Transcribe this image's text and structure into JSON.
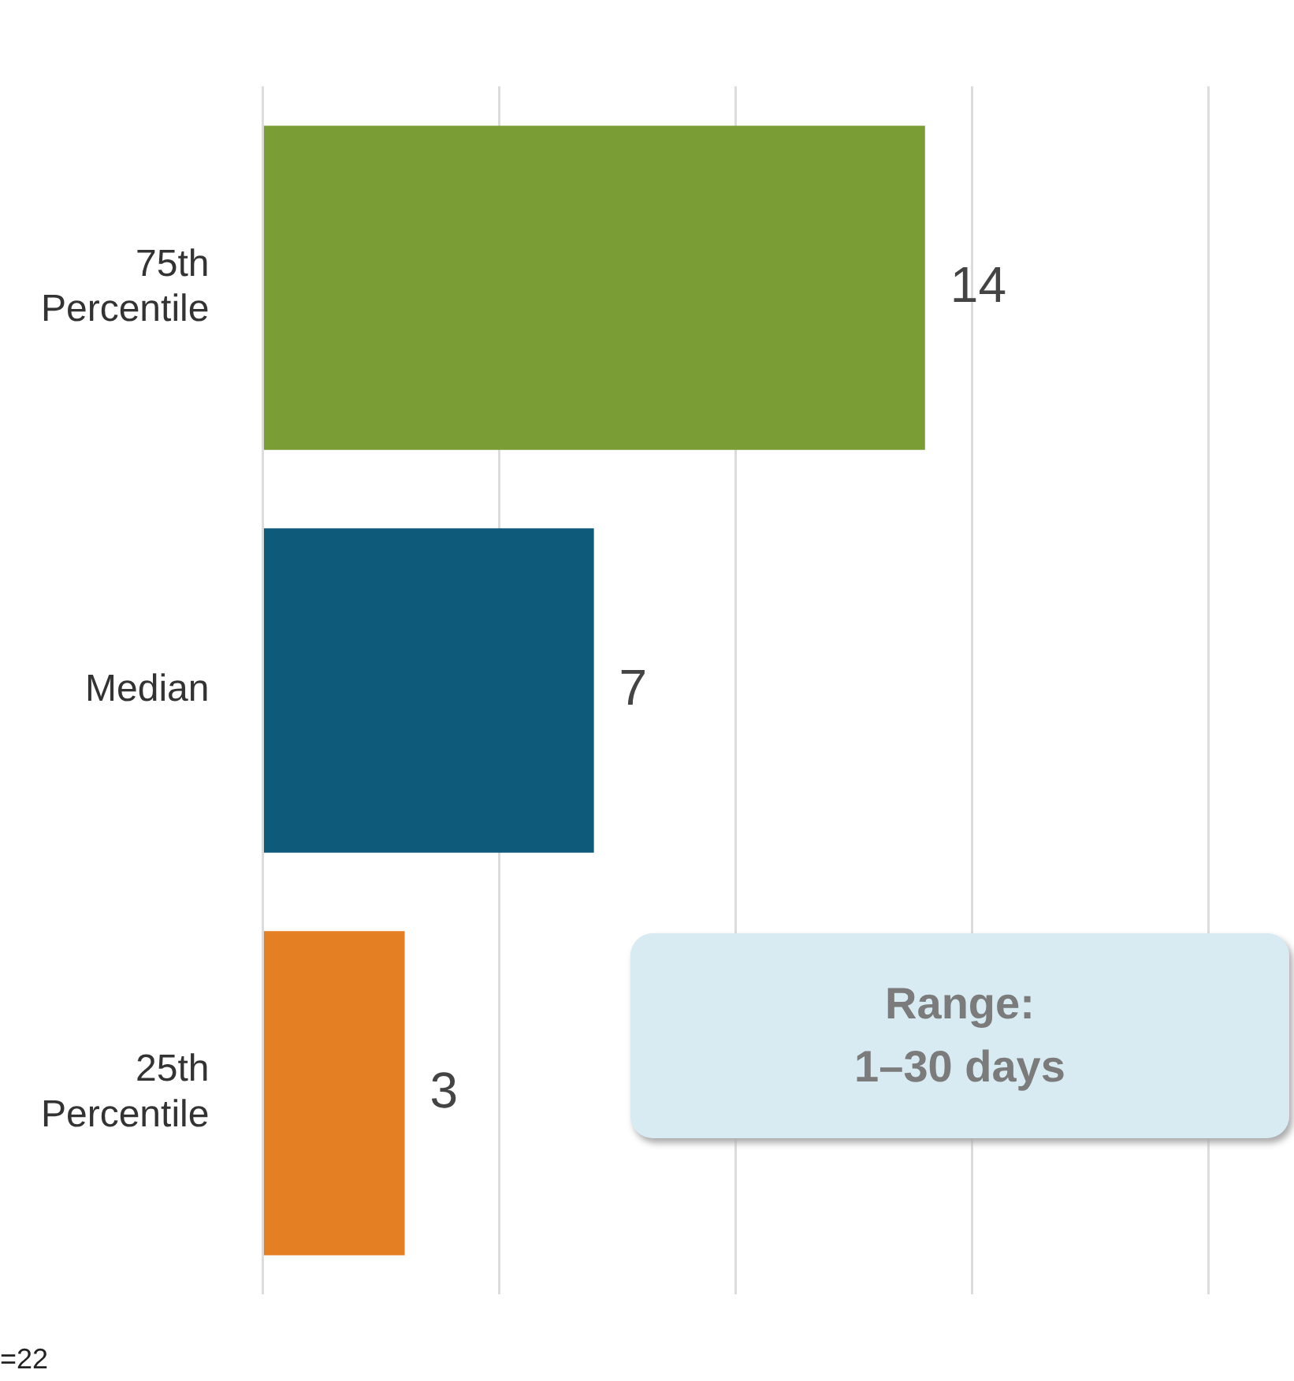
{
  "chart_data": {
    "type": "bar",
    "orientation": "horizontal",
    "categories": [
      "75th Percentile",
      "Median",
      "25th Percentile"
    ],
    "values": [
      14,
      7,
      3
    ],
    "colors": [
      "#7a9e35",
      "#0e5a7a",
      "#e57f24"
    ],
    "data_labels": true,
    "xlim": [
      0,
      21.8
    ],
    "xticks": [
      {
        "value": 0,
        "label": null
      },
      {
        "value": 5,
        "label": null
      },
      {
        "value": 10,
        "label": null
      },
      {
        "value": 15,
        "label": null
      },
      {
        "value": 20,
        "label": null
      }
    ],
    "tick_labels": "y",
    "grid": "x",
    "legend": false,
    "annotations": [
      "Range:\n1–30 days",
      "=22"
    ]
  }
}
